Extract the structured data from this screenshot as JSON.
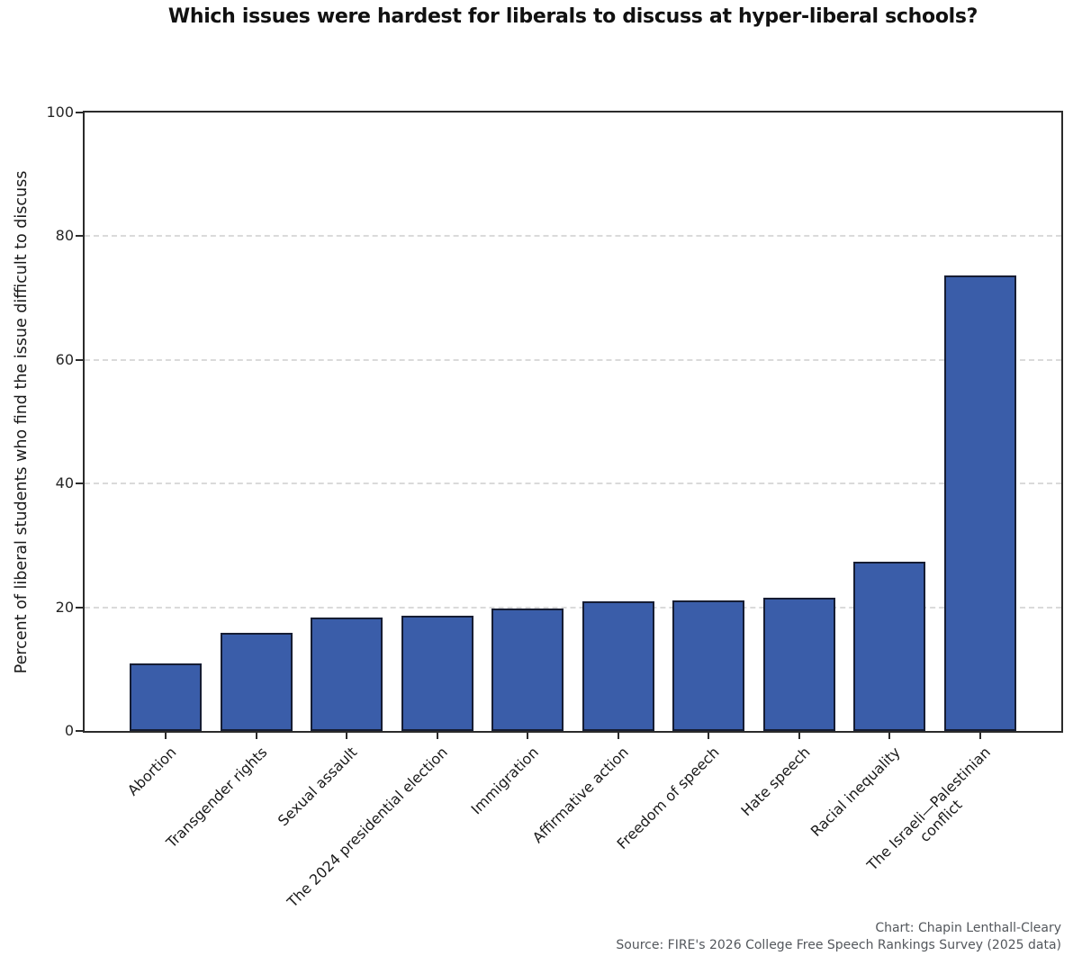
{
  "chart_data": {
    "type": "bar",
    "title": "Which issues were hardest for liberals to discuss at hyper-liberal schools?",
    "categories": [
      "Abortion",
      "Transgender rights",
      "Sexual assault",
      "The 2024 presidential election",
      "Immigration",
      "Affirmative action",
      "Freedom of speech",
      "Hate speech",
      "Racial inequality",
      "The Israeli—Palestinian\nconflict"
    ],
    "values": [
      10.9,
      15.9,
      18.3,
      18.7,
      19.8,
      20.9,
      21.1,
      21.5,
      27.3,
      73.6
    ],
    "xlabel": "",
    "ylabel": "Percent of liberal students who find the issue difficult to discuss",
    "ylim": [
      0,
      100
    ],
    "yticks": [
      0,
      20,
      40,
      60,
      80,
      100
    ],
    "grid": "horizontal-dashed",
    "legend_position": "none",
    "bar_color": "#3a5da9",
    "bar_edge_color": "#161d33"
  },
  "footer": {
    "credit": "Chart: Chapin Lenthall-Cleary",
    "source": "Source: FIRE's 2026 College Free Speech Rankings Survey (2025 data)"
  }
}
